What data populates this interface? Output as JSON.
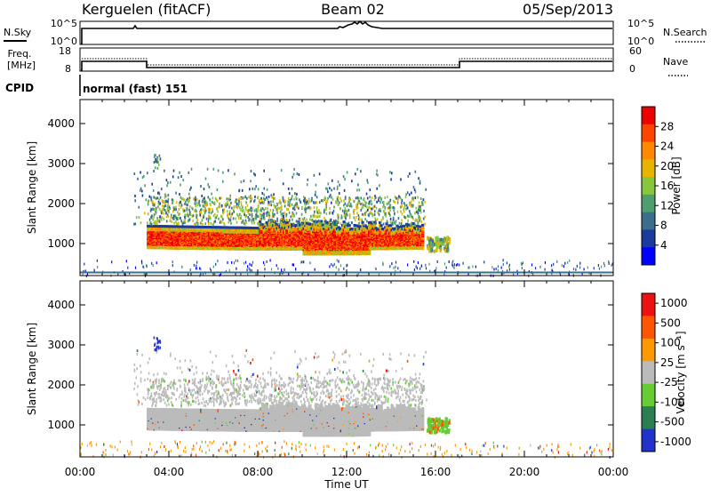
{
  "header": {
    "station": "Kerguelen (fitACF)",
    "beam": "Beam 02",
    "date": "05/Sep/2013"
  },
  "panels": {
    "nsky": {
      "left_label": "N.Sky",
      "right_label": "N.Search",
      "left_ticks": [
        "10^5",
        "10^0"
      ],
      "right_ticks": [
        "10^5",
        "10^0"
      ]
    },
    "freq": {
      "left_label_1": "Freq.",
      "left_label_2": "[MHz]",
      "right_label": "Nave",
      "left_ticks": [
        "18",
        "8"
      ],
      "right_ticks": [
        "60",
        "0"
      ]
    },
    "cpid": {
      "label": "CPID",
      "value": "normal (fast) 151"
    }
  },
  "colors": {
    "power_scale": [
      "#0000ff",
      "#1a3a9e",
      "#3a6e8c",
      "#4f9f6e",
      "#88c63e",
      "#e8b400",
      "#ff8800",
      "#ff4400",
      "#ee0000"
    ],
    "velocity_scale": [
      "#2233cc",
      "#2a7e50",
      "#66cc33",
      "#bbbbbb",
      "#ff9900",
      "#ff5500",
      "#ee1111"
    ],
    "ground_scatter": "#bbbbbb"
  },
  "chart_data": [
    {
      "type": "heatmap",
      "title": "",
      "xlabel": "Time UT",
      "ylabel": "Slant Range [km]",
      "x_ticks": [
        "00:00",
        "04:00",
        "08:00",
        "12:00",
        "16:00",
        "20:00",
        "00:00"
      ],
      "y_ticks": [
        "1000",
        "2000",
        "3000",
        "4000"
      ],
      "xlim_hours": [
        0,
        24
      ],
      "ylim_km": [
        200,
        4600
      ],
      "colorbar": {
        "label": "Power [dB]",
        "ticks": [
          "4",
          "8",
          "12",
          "16",
          "20",
          "24",
          "28"
        ],
        "range": [
          0,
          30
        ]
      },
      "scatter_regions": [
        {
          "t_start": 3.0,
          "t_end": 15.5,
          "range_km": [
            900,
            1500
          ],
          "power_db": 28
        },
        {
          "t_start": 2.5,
          "t_end": 15.5,
          "range_km": [
            1500,
            2600
          ],
          "power_db": 10
        },
        {
          "t_start": 15.5,
          "t_end": 16.5,
          "range_km": [
            800,
            1200
          ],
          "power_db": 14
        }
      ]
    },
    {
      "type": "heatmap",
      "title": "",
      "xlabel": "Time UT",
      "ylabel": "Slant Range [km]",
      "x_ticks": [
        "00:00",
        "04:00",
        "08:00",
        "12:00",
        "16:00",
        "20:00",
        "00:00"
      ],
      "y_ticks": [
        "1000",
        "2000",
        "3000",
        "4000"
      ],
      "xlim_hours": [
        0,
        24
      ],
      "ylim_km": [
        200,
        4600
      ],
      "colorbar": {
        "label": "Velocity [m s⁻¹]",
        "ticks": [
          "1000",
          "500",
          "100",
          "25",
          "-25",
          "-100",
          "-500",
          "-1000"
        ],
        "range": [
          -1000,
          1000
        ]
      },
      "scatter_regions": [
        {
          "t_start": 3.0,
          "t_end": 15.5,
          "range_km": [
            900,
            1500
          ],
          "velocity_ms": 0,
          "ground_scatter": true
        },
        {
          "t_start": 2.5,
          "t_end": 15.5,
          "range_km": [
            1500,
            2600
          ],
          "velocity_ms": 0,
          "ground_scatter": true
        },
        {
          "t_start": 15.5,
          "t_end": 16.5,
          "range_km": [
            800,
            1200
          ],
          "velocity_ms": 100
        }
      ]
    }
  ]
}
